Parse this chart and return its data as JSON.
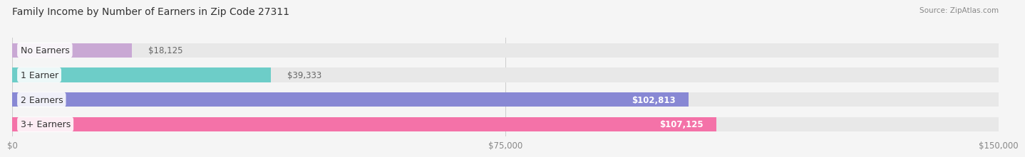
{
  "title": "Family Income by Number of Earners in Zip Code 27311",
  "source": "Source: ZipAtlas.com",
  "categories": [
    "No Earners",
    "1 Earner",
    "2 Earners",
    "3+ Earners"
  ],
  "values": [
    18125,
    39333,
    102813,
    107125
  ],
  "bar_colors": [
    "#c9a8d4",
    "#6dcdc8",
    "#8888d4",
    "#f472a8"
  ],
  "background_color": "#f5f5f5",
  "bar_bg_color": "#e8e8e8",
  "xlim": [
    0,
    150000
  ],
  "xticks": [
    0,
    75000,
    150000
  ],
  "xtick_labels": [
    "$0",
    "$75,000",
    "$150,000"
  ],
  "label_fontsize": 9,
  "title_fontsize": 10,
  "value_fontsize": 8.5,
  "bar_height": 0.58
}
